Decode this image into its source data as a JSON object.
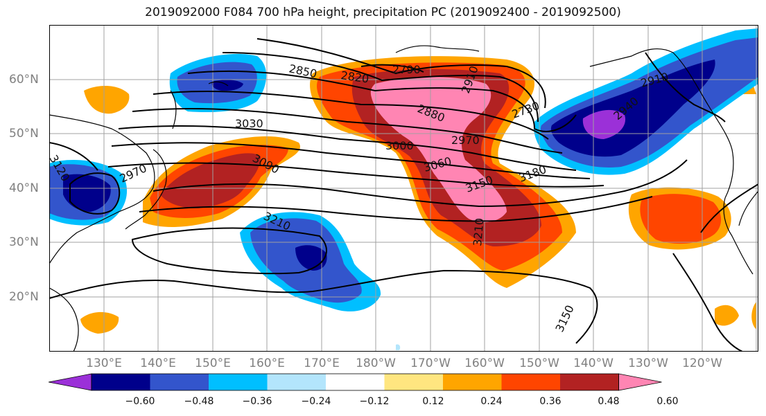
{
  "title": "2019092000 F084 700 hPa height, precipitation PC (2019092400 - 2019092500)",
  "map": {
    "longitude_labels": [
      "130°E",
      "140°E",
      "150°E",
      "160°E",
      "170°E",
      "180°W",
      "170°W",
      "160°W",
      "150°W",
      "140°W",
      "130°W",
      "120°W"
    ],
    "latitude_labels": [
      "60°N",
      "50°N",
      "40°N",
      "30°N",
      "20°N"
    ],
    "grid": true,
    "coastlines": true
  },
  "height_contour_labels": [
    "2850",
    "2820",
    "2790",
    "2880",
    "2730",
    "3030",
    "3000",
    "2970",
    "2910",
    "2940",
    "3090",
    "3060",
    "3150",
    "3180",
    "3210",
    "3210",
    "3150",
    "3120",
    "2970",
    "2910"
  ],
  "colorbar": {
    "tick_labels": [
      "−0.60",
      "−0.48",
      "−0.36",
      "−0.24",
      "−0.12",
      "0.12",
      "0.24",
      "0.36",
      "0.48",
      "0.60"
    ],
    "colors": [
      "#9b30d8",
      "#00008b",
      "#3355cc",
      "#00bfff",
      "#b3e5fc",
      "#ffffff",
      "#ffe680",
      "#ffa500",
      "#ff4500",
      "#b22222",
      "#ff85b3"
    ],
    "extend": "both"
  },
  "colors": {
    "pink": "#ff85b3",
    "darkred": "#b22222",
    "red": "#ff4500",
    "orange": "#ffa500",
    "yellow": "#ffe680",
    "lightblue": "#b3e5fc",
    "cyan": "#00bfff",
    "medblue": "#3355cc",
    "navy": "#00008b",
    "purple": "#9b30d8",
    "contour": "#000000",
    "grid": "#a0a0a0"
  }
}
